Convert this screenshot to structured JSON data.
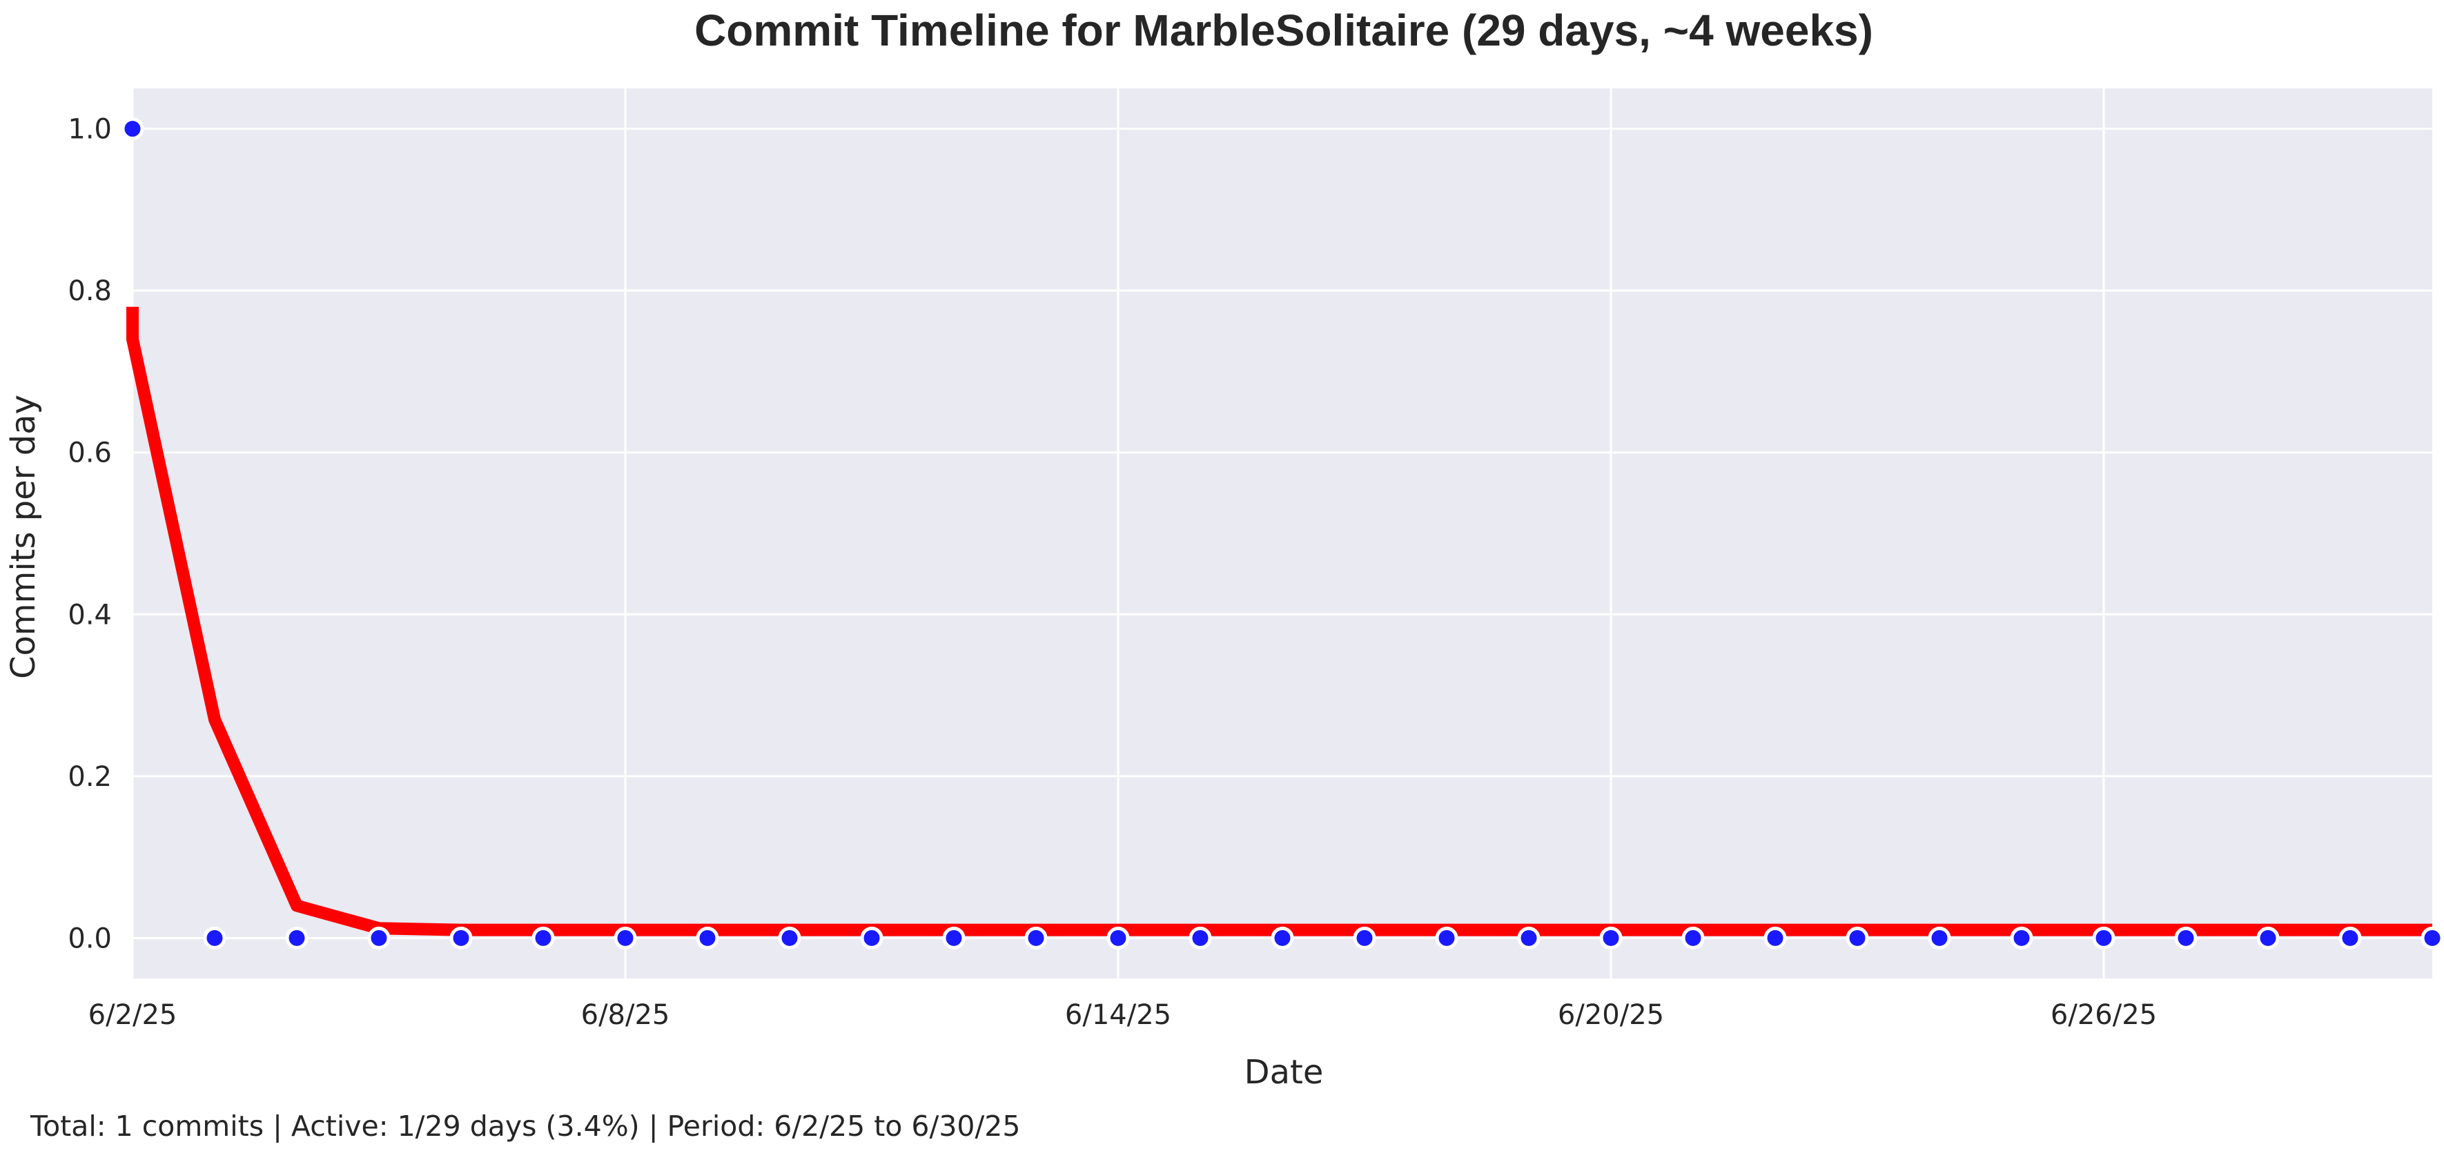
{
  "chart_data": {
    "type": "line",
    "title": "Commit Timeline for MarbleSolitaire (29 days, ~4 weeks)",
    "xlabel": "Date",
    "ylabel": "Commits per day",
    "ylim": [
      -0.05,
      1.05
    ],
    "xlim": [
      "2025-06-02",
      "2025-06-30"
    ],
    "x_ticks": [
      {
        "date": "2025-06-02",
        "label": "6/2/25"
      },
      {
        "date": "2025-06-08",
        "label": "6/8/25"
      },
      {
        "date": "2025-06-14",
        "label": "6/14/25"
      },
      {
        "date": "2025-06-20",
        "label": "6/20/25"
      },
      {
        "date": "2025-06-26",
        "label": "6/26/25"
      }
    ],
    "y_ticks": [
      {
        "value": 0.0,
        "label": "0.0"
      },
      {
        "value": 0.2,
        "label": "0.2"
      },
      {
        "value": 0.4,
        "label": "0.4"
      },
      {
        "value": 0.6,
        "label": "0.6"
      },
      {
        "value": 0.8,
        "label": "0.8"
      },
      {
        "value": 1.0,
        "label": "1.0"
      }
    ],
    "grid": true,
    "series": [
      {
        "kind": "scatter",
        "color": "#1a1aff",
        "x": [
          "2025-06-02",
          "2025-06-03",
          "2025-06-04",
          "2025-06-05",
          "2025-06-06",
          "2025-06-07",
          "2025-06-08",
          "2025-06-09",
          "2025-06-10",
          "2025-06-11",
          "2025-06-12",
          "2025-06-13",
          "2025-06-14",
          "2025-06-15",
          "2025-06-16",
          "2025-06-17",
          "2025-06-18",
          "2025-06-19",
          "2025-06-20",
          "2025-06-21",
          "2025-06-22",
          "2025-06-23",
          "2025-06-24",
          "2025-06-25",
          "2025-06-26",
          "2025-06-27",
          "2025-06-28",
          "2025-06-29",
          "2025-06-30"
        ],
        "values": [
          1,
          0,
          0,
          0,
          0,
          0,
          0,
          0,
          0,
          0,
          0,
          0,
          0,
          0,
          0,
          0,
          0,
          0,
          0,
          0,
          0,
          0,
          0,
          0,
          0,
          0,
          0,
          0,
          0
        ]
      },
      {
        "kind": "line",
        "color": "#ff0000",
        "x": [
          "2025-06-02",
          "2025-06-02",
          "2025-06-03",
          "2025-06-04",
          "2025-06-05",
          "2025-06-06",
          "2025-06-07",
          "2025-06-08",
          "2025-06-09",
          "2025-06-10",
          "2025-06-11",
          "2025-06-12",
          "2025-06-13",
          "2025-06-14",
          "2025-06-15",
          "2025-06-16",
          "2025-06-17",
          "2025-06-18",
          "2025-06-19",
          "2025-06-20",
          "2025-06-21",
          "2025-06-22",
          "2025-06-23",
          "2025-06-24",
          "2025-06-25",
          "2025-06-26",
          "2025-06-27",
          "2025-06-28",
          "2025-06-29",
          "2025-06-30"
        ],
        "values": [
          0.78,
          0.74,
          0.27,
          0.04,
          0.012,
          0.01,
          0.01,
          0.01,
          0.01,
          0.01,
          0.01,
          0.01,
          0.01,
          0.01,
          0.01,
          0.01,
          0.01,
          0.01,
          0.01,
          0.01,
          0.01,
          0.01,
          0.01,
          0.01,
          0.01,
          0.01,
          0.01,
          0.01,
          0.01,
          0.01
        ]
      }
    ]
  },
  "footer": "Total: 1 commits | Active: 1/29 days (3.4%) | Period: 6/2/25 to 6/30/25"
}
